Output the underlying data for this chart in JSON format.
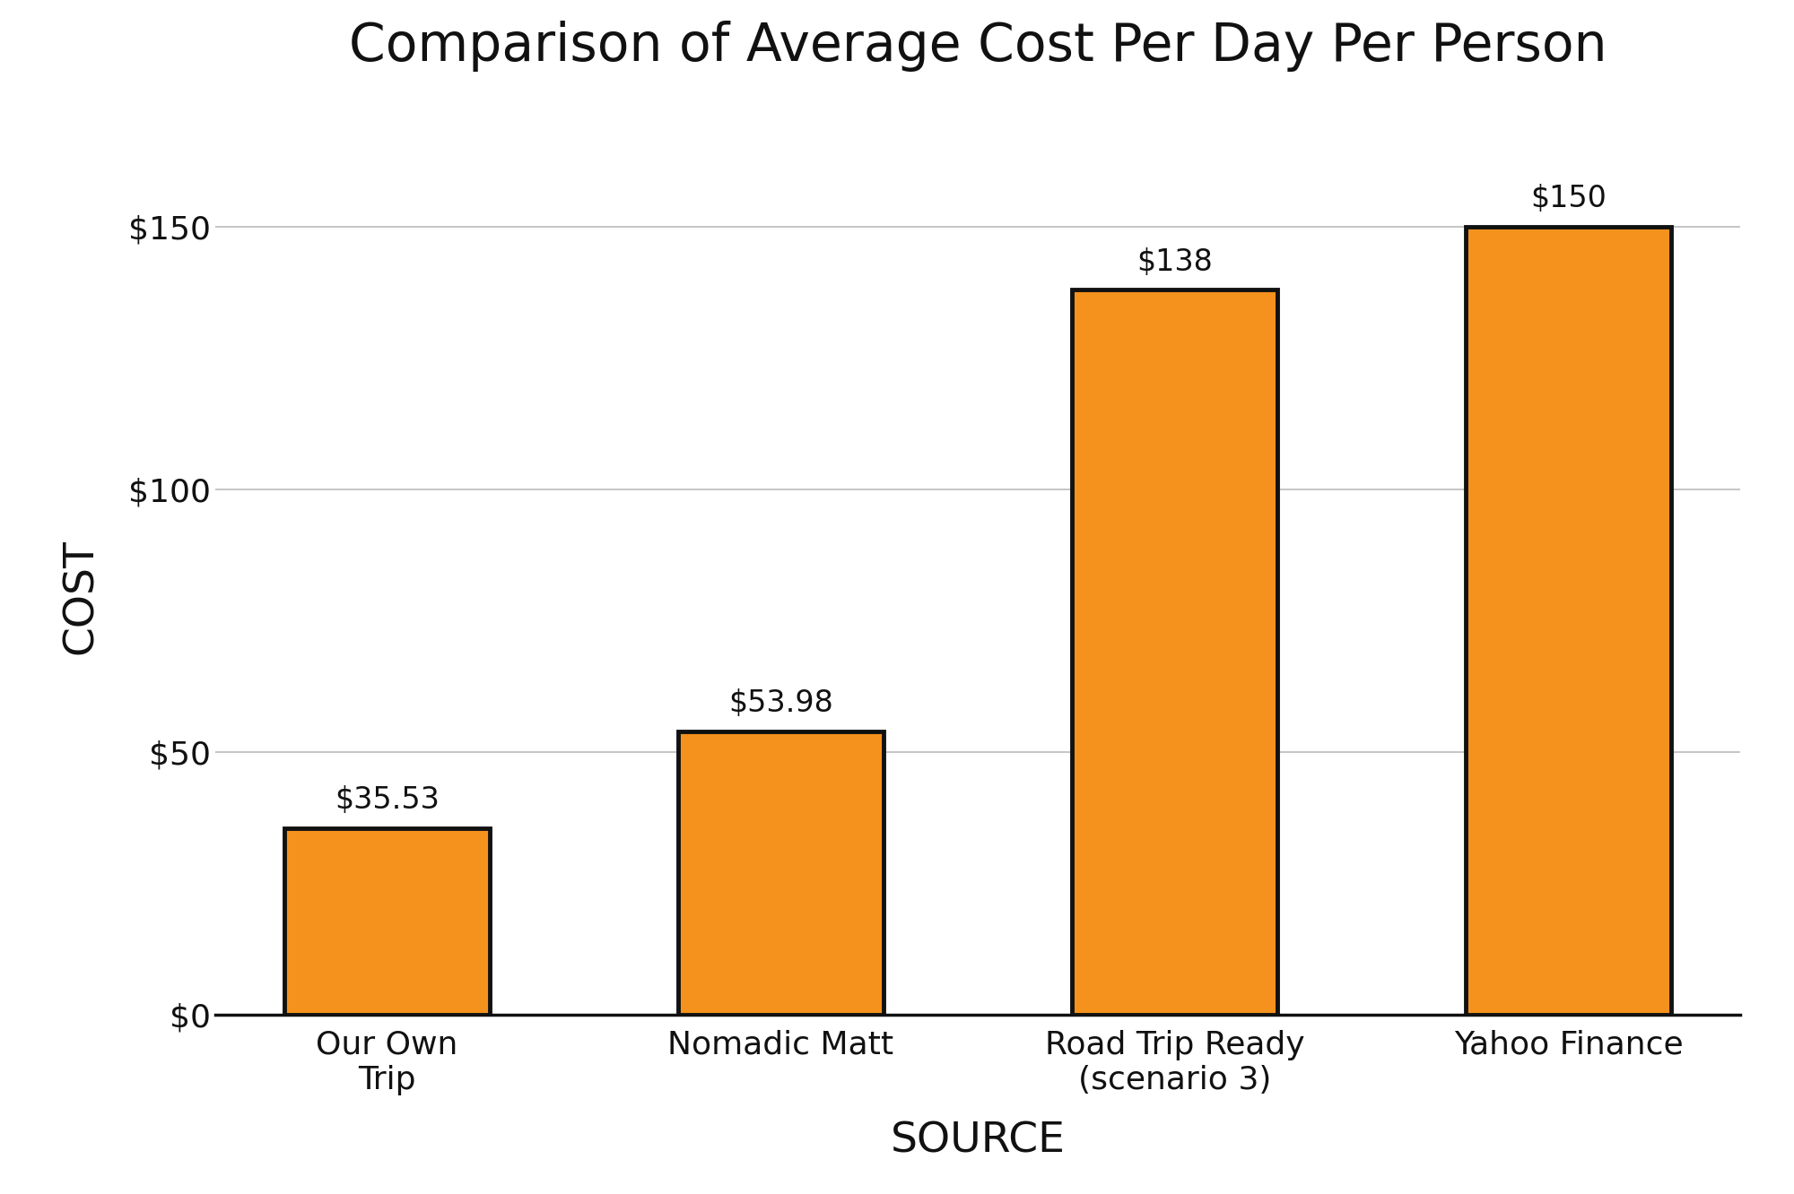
{
  "title": "Comparison of Average Cost Per Day Per Person",
  "categories": [
    "Our Own\nTrip",
    "Nomadic Matt",
    "Road Trip Ready\n(scenario 3)",
    "Yahoo Finance"
  ],
  "values": [
    35.53,
    53.98,
    138,
    150
  ],
  "labels": [
    "$35.53",
    "$53.98",
    "$138",
    "$150"
  ],
  "bar_color": "#F5921E",
  "bar_edge_color": "#111111",
  "bar_edge_width": 3.5,
  "bar_width": 0.52,
  "xlabel": "SOURCE",
  "ylabel": "COST",
  "yticks": [
    0,
    50,
    100,
    150
  ],
  "ytick_labels": [
    "$0",
    "$50",
    "$100",
    "$150"
  ],
  "ylim": [
    0,
    175
  ],
  "background_color": "#ffffff",
  "grid_color": "#bbbbbb",
  "title_fontsize": 42,
  "axis_label_fontsize": 34,
  "tick_fontsize": 26,
  "annotation_fontsize": 24
}
